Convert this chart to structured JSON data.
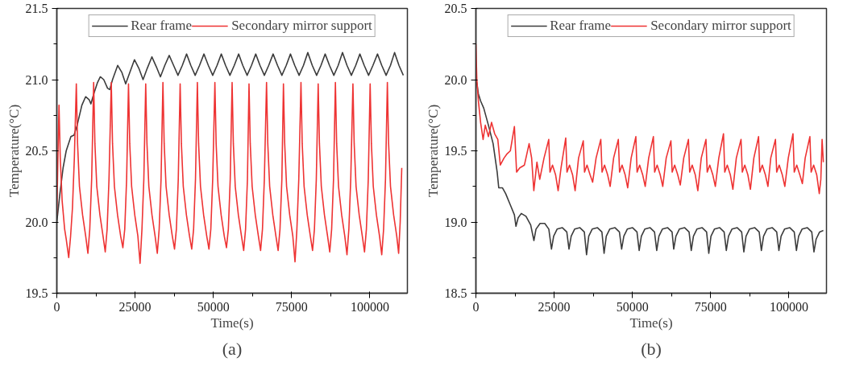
{
  "chart_data": [
    {
      "type": "line",
      "xlabel": "Time(s)",
      "ylabel": "Temperature(°C)",
      "annotations": [
        "(a)"
      ],
      "xlim": [
        0,
        112000
      ],
      "ylim": [
        19.5,
        21.5
      ],
      "xticks": [
        0,
        25000,
        50000,
        75000,
        100000
      ],
      "yticks": [
        19.5,
        {
          "value": 20,
          "label": "20.0"
        },
        20.5,
        {
          "value": 21,
          "label": "21.0"
        },
        21.5
      ],
      "grid": false,
      "legend": "top",
      "marker": "none",
      "line_style": "solid",
      "series": [
        {
          "name": "Rear frame",
          "color": "#3c3c3c",
          "x": [
            0,
            1000,
            2000,
            3000,
            4500,
            5500,
            6500,
            8000,
            9200,
            10300,
            10900,
            11800,
            13000,
            13900,
            15000,
            16200,
            16900,
            17800,
            19450,
            20800,
            22000,
            23300,
            24800,
            26200,
            27550,
            28900,
            30370,
            31800,
            33100,
            34500,
            35910,
            37300,
            38700,
            40100,
            41460,
            42800,
            44200,
            45600,
            47000,
            48400,
            49800,
            51200,
            52550,
            53900,
            55300,
            56700,
            58090,
            59400,
            60800,
            62200,
            63550,
            64900,
            66300,
            67700,
            69100,
            70500,
            71900,
            73300,
            74640,
            76000,
            77400,
            78800,
            80180,
            81600,
            83000,
            84400,
            85730,
            87100,
            88500,
            89900,
            91270,
            92700,
            94100,
            95500,
            96820,
            98200,
            99600,
            101000,
            102450,
            103800,
            105200,
            106600,
            107900,
            109300,
            110700
          ],
          "values": [
            20.0,
            20.2,
            20.38,
            20.5,
            20.6,
            20.61,
            20.68,
            20.82,
            20.88,
            20.86,
            20.83,
            20.9,
            20.98,
            21.02,
            21.0,
            20.94,
            20.93,
            21.0,
            21.1,
            21.05,
            20.97,
            21.05,
            21.14,
            21.08,
            21.0,
            21.08,
            21.16,
            21.09,
            21.02,
            21.1,
            21.17,
            21.1,
            21.03,
            21.1,
            21.18,
            21.1,
            21.03,
            21.1,
            21.18,
            21.1,
            21.03,
            21.1,
            21.18,
            21.1,
            21.03,
            21.1,
            21.18,
            21.1,
            21.03,
            21.1,
            21.18,
            21.1,
            21.03,
            21.1,
            21.18,
            21.1,
            21.03,
            21.1,
            21.18,
            21.1,
            21.03,
            21.1,
            21.19,
            21.1,
            21.03,
            21.1,
            21.18,
            21.1,
            21.03,
            21.1,
            21.19,
            21.1,
            21.03,
            21.1,
            21.18,
            21.1,
            21.03,
            21.1,
            21.18,
            21.1,
            21.03,
            21.1,
            21.19,
            21.1,
            21.03
          ]
        },
        {
          "name": "Secondary mirror support",
          "color": "#ee3333",
          "x": [
            0,
            400,
            700,
            1100,
            1700,
            2500,
            3000,
            3800,
            4400,
            5000,
            5600,
            6230,
            6630,
            7230,
            8230,
            9230,
            9930,
            10530,
            11130,
            11770,
            12170,
            12770,
            13770,
            14770,
            15470,
            16070,
            16670,
            17400,
            17800,
            18400,
            19400,
            20400,
            21100,
            21700,
            22300,
            22900,
            23300,
            23900,
            24900,
            25900,
            26600,
            27200,
            27800,
            28400,
            28800,
            29400,
            30400,
            31400,
            32100,
            32700,
            33300,
            33900,
            34300,
            34900,
            35900,
            36900,
            37600,
            38200,
            38800,
            39400,
            39800,
            40400,
            41400,
            42400,
            43100,
            43700,
            44300,
            44900,
            45300,
            45900,
            46900,
            47900,
            48600,
            49200,
            49800,
            50500,
            50900,
            51500,
            52500,
            53500,
            54200,
            54800,
            55400,
            56000,
            56400,
            57000,
            58000,
            59000,
            59700,
            60300,
            60900,
            61400,
            61800,
            62400,
            63400,
            64400,
            65100,
            65700,
            66300,
            67000,
            67400,
            68000,
            69000,
            70000,
            70700,
            71300,
            71900,
            72400,
            72800,
            73400,
            74400,
            75400,
            76100,
            76700,
            77300,
            78000,
            78400,
            79000,
            80000,
            81000,
            81700,
            82300,
            82900,
            83500,
            83900,
            84500,
            85500,
            86500,
            87200,
            87800,
            88400,
            89000,
            89400,
            90000,
            91000,
            92000,
            92700,
            93300,
            93900,
            94600,
            95000,
            95600,
            96600,
            97600,
            98300,
            98900,
            99500,
            100100,
            100500,
            101100,
            102100,
            103100,
            103800,
            104400,
            105000,
            105600,
            106000,
            106600,
            107600,
            108600,
            109200,
            109700,
            110200
          ],
          "values": [
            20.05,
            20.5,
            20.82,
            20.45,
            20.15,
            19.95,
            19.88,
            19.75,
            19.9,
            20.1,
            20.45,
            20.97,
            20.55,
            20.25,
            20.05,
            19.9,
            19.78,
            19.95,
            20.3,
            20.98,
            20.55,
            20.25,
            20.05,
            19.9,
            19.79,
            19.95,
            20.3,
            20.98,
            20.55,
            20.25,
            20.05,
            19.9,
            19.82,
            19.95,
            20.3,
            20.97,
            20.55,
            20.25,
            20.05,
            19.9,
            19.71,
            19.95,
            20.3,
            20.97,
            20.55,
            20.25,
            20.05,
            19.9,
            19.78,
            19.95,
            20.3,
            20.98,
            20.55,
            20.25,
            20.05,
            19.9,
            19.81,
            19.95,
            20.3,
            20.97,
            20.55,
            20.25,
            20.05,
            19.9,
            19.81,
            19.95,
            20.3,
            20.98,
            20.55,
            20.25,
            20.05,
            19.9,
            19.81,
            19.95,
            20.3,
            20.98,
            20.55,
            20.25,
            20.05,
            19.9,
            19.82,
            19.95,
            20.3,
            20.98,
            20.55,
            20.25,
            20.05,
            19.9,
            19.8,
            19.95,
            20.3,
            20.97,
            20.55,
            20.25,
            20.05,
            19.9,
            19.8,
            19.95,
            20.3,
            20.98,
            20.55,
            20.25,
            20.05,
            19.9,
            19.8,
            19.95,
            20.3,
            20.97,
            20.55,
            20.25,
            20.05,
            19.9,
            19.72,
            19.95,
            20.3,
            20.98,
            20.55,
            20.25,
            20.05,
            19.9,
            19.8,
            19.95,
            20.3,
            20.97,
            20.55,
            20.25,
            20.05,
            19.9,
            19.79,
            19.95,
            20.3,
            20.98,
            20.55,
            20.25,
            20.05,
            19.9,
            19.77,
            19.95,
            20.3,
            20.97,
            20.55,
            20.25,
            20.05,
            19.9,
            19.79,
            19.95,
            20.3,
            20.97,
            20.55,
            20.25,
            20.05,
            19.9,
            19.77,
            19.95,
            20.3,
            20.98,
            20.55,
            20.25,
            20.05,
            19.9,
            19.78,
            20.0,
            20.38
          ]
        }
      ]
    },
    {
      "type": "line",
      "xlabel": "Time(s)",
      "ylabel": "Temperature(°C)",
      "annotations": [
        "(b)"
      ],
      "xlim": [
        0,
        112000
      ],
      "ylim": [
        18.5,
        20.5
      ],
      "xticks": [
        0,
        25000,
        50000,
        75000,
        100000
      ],
      "yticks": [
        18.5,
        {
          "value": 19,
          "label": "19.0"
        },
        19.5,
        {
          "value": 20,
          "label": "20.0"
        },
        20.5
      ],
      "grid": false,
      "legend": "top",
      "marker": "none",
      "line_style": "solid",
      "series": [
        {
          "name": "Rear frame",
          "color": "#3c3c3c",
          "x": [
            0,
            800,
            1500,
            2500,
            4000,
            5500,
            6800,
            7300,
            8500,
            9500,
            11000,
            12300,
            12800,
            13500,
            14500,
            16000,
            17500,
            18530,
            19200,
            20500,
            22000,
            23300,
            24140,
            24840,
            25940,
            27640,
            29040,
            29740,
            30440,
            31540,
            33240,
            34640,
            35350,
            36050,
            37150,
            38850,
            40250,
            40950,
            41650,
            42750,
            44450,
            45850,
            46560,
            47260,
            48360,
            50060,
            51460,
            52160,
            52860,
            53960,
            55660,
            57060,
            57770,
            58470,
            59570,
            61270,
            62670,
            63200,
            63900,
            65000,
            66700,
            68100,
            68800,
            69500,
            70600,
            72300,
            73700,
            74400,
            75100,
            76200,
            77900,
            79300,
            80000,
            80700,
            81800,
            83500,
            84900,
            85600,
            86300,
            87400,
            89100,
            90500,
            91200,
            91900,
            93000,
            94700,
            96100,
            96800,
            97500,
            98600,
            100300,
            101700,
            102400,
            103100,
            104200,
            105900,
            107300,
            108000,
            108700,
            109800,
            111000
          ],
          "values": [
            20.02,
            19.9,
            19.85,
            19.8,
            19.68,
            19.55,
            19.35,
            19.24,
            19.24,
            19.2,
            19.12,
            19.05,
            18.97,
            19.03,
            19.06,
            19.04,
            18.98,
            18.87,
            18.95,
            18.99,
            18.99,
            18.95,
            18.81,
            18.9,
            18.95,
            18.96,
            18.93,
            18.81,
            18.9,
            18.95,
            18.96,
            18.93,
            18.77,
            18.9,
            18.95,
            18.96,
            18.93,
            18.78,
            18.9,
            18.95,
            18.96,
            18.93,
            18.81,
            18.9,
            18.95,
            18.96,
            18.93,
            18.8,
            18.9,
            18.95,
            18.96,
            18.93,
            18.8,
            18.9,
            18.95,
            18.96,
            18.93,
            18.81,
            18.9,
            18.95,
            18.96,
            18.93,
            18.8,
            18.9,
            18.95,
            18.96,
            18.93,
            18.78,
            18.9,
            18.95,
            18.96,
            18.93,
            18.8,
            18.9,
            18.95,
            18.96,
            18.93,
            18.79,
            18.9,
            18.95,
            18.96,
            18.93,
            18.8,
            18.9,
            18.95,
            18.96,
            18.93,
            18.8,
            18.9,
            18.95,
            18.96,
            18.93,
            18.8,
            18.9,
            18.95,
            18.96,
            18.93,
            18.79,
            18.88,
            18.93,
            18.94
          ]
        },
        {
          "name": "Secondary mirror support",
          "color": "#ee3333",
          "x": [
            0,
            300,
            800,
            1500,
            2300,
            3000,
            4000,
            5000,
            6000,
            7000,
            7800,
            9000,
            10000,
            11000,
            12300,
            13000,
            14000,
            15500,
            17000,
            17800,
            18500,
            19500,
            20400,
            21770,
            23270,
            23670,
            24470,
            25470,
            26270,
            27200,
            28700,
            29100,
            29900,
            30900,
            31700,
            32800,
            34300,
            34700,
            35500,
            36500,
            37300,
            38400,
            39900,
            40300,
            41100,
            42100,
            42900,
            44000,
            45500,
            45900,
            46700,
            47700,
            48500,
            49600,
            51100,
            51500,
            52300,
            53300,
            54100,
            55200,
            56700,
            57100,
            57900,
            58900,
            59700,
            60800,
            62300,
            62700,
            63500,
            64500,
            65300,
            66400,
            67900,
            68300,
            69100,
            70100,
            70900,
            72000,
            73500,
            73900,
            74700,
            75700,
            76500,
            77600,
            79100,
            79500,
            80300,
            81300,
            82100,
            83200,
            84700,
            85100,
            85900,
            86900,
            87700,
            88800,
            90300,
            90700,
            91500,
            92500,
            93300,
            94200,
            95700,
            96100,
            96900,
            97900,
            98700,
            99800,
            101300,
            101700,
            102500,
            103500,
            104300,
            105200,
            106700,
            107100,
            107900,
            108900,
            109700,
            110200,
            110600,
            111000
          ],
          "values": [
            20.25,
            20.0,
            19.85,
            19.7,
            19.58,
            19.68,
            19.6,
            19.7,
            19.62,
            19.58,
            19.4,
            19.45,
            19.48,
            19.5,
            19.67,
            19.35,
            19.38,
            19.4,
            19.55,
            19.45,
            19.22,
            19.42,
            19.3,
            19.45,
            19.58,
            19.35,
            19.4,
            19.33,
            19.22,
            19.38,
            19.59,
            19.35,
            19.4,
            19.33,
            19.22,
            19.45,
            19.57,
            19.35,
            19.4,
            19.33,
            19.28,
            19.45,
            19.58,
            19.35,
            19.4,
            19.33,
            19.25,
            19.45,
            19.58,
            19.35,
            19.4,
            19.33,
            19.24,
            19.45,
            19.6,
            19.35,
            19.4,
            19.33,
            19.25,
            19.45,
            19.6,
            19.35,
            19.4,
            19.33,
            19.25,
            19.45,
            19.57,
            19.35,
            19.4,
            19.33,
            19.26,
            19.45,
            19.58,
            19.35,
            19.4,
            19.33,
            19.22,
            19.45,
            19.58,
            19.35,
            19.4,
            19.33,
            19.25,
            19.45,
            19.62,
            19.35,
            19.4,
            19.33,
            19.23,
            19.45,
            19.58,
            19.35,
            19.4,
            19.33,
            19.23,
            19.45,
            19.6,
            19.35,
            19.4,
            19.33,
            19.25,
            19.45,
            19.58,
            19.35,
            19.4,
            19.33,
            19.25,
            19.45,
            19.62,
            19.35,
            19.4,
            19.33,
            19.27,
            19.45,
            19.6,
            19.35,
            19.4,
            19.33,
            19.2,
            19.3,
            19.58,
            19.42
          ]
        }
      ]
    }
  ]
}
